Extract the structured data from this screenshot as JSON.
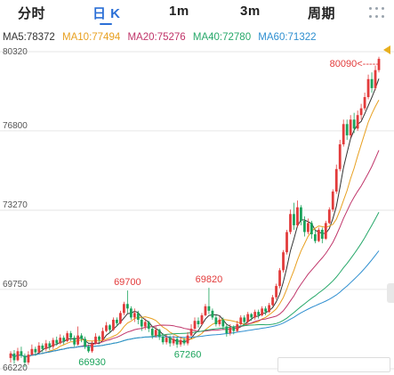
{
  "tabs": [
    {
      "label": "分时",
      "active": false
    },
    {
      "label": "日 K",
      "active": true
    },
    {
      "label": "1m",
      "active": false
    },
    {
      "label": "3m",
      "active": false
    },
    {
      "label": "周期",
      "active": false
    }
  ],
  "ma_legend": [
    {
      "text": "MA5:78372",
      "color": "#333333"
    },
    {
      "text": "MA10:77494",
      "color": "#e8a020"
    },
    {
      "text": "MA20:75276",
      "color": "#c0356a"
    },
    {
      "text": "MA40:72780",
      "color": "#27a86a"
    },
    {
      "text": "MA60:71322",
      "color": "#2f8fd0"
    }
  ],
  "colors": {
    "up": "#e23b3b",
    "down": "#1aa35b",
    "active_tab": "#2b6fd6",
    "grid": "#e6e6e6"
  },
  "chart_data": {
    "type": "candlestick",
    "ylim": [
      66220,
      80320
    ],
    "ytick_labels": [
      "80320",
      "76800",
      "73270",
      "69750",
      "66220"
    ],
    "yticks": [
      80320,
      76800,
      73270,
      69750,
      66220
    ],
    "annotations": [
      {
        "text": "69700",
        "index": 33,
        "value": 69700,
        "pos": "above"
      },
      {
        "text": "69820",
        "index": 56,
        "value": 69820,
        "pos": "above"
      },
      {
        "text": "66930",
        "index": 23,
        "value": 66930,
        "pos": "below"
      },
      {
        "text": "67260",
        "index": 50,
        "value": 67260,
        "pos": "below"
      },
      {
        "text": "80090<-----",
        "index": 105,
        "value": 80090,
        "pos": "left"
      }
    ],
    "candles": [
      [
        66700,
        66900,
        66500,
        67000
      ],
      [
        66900,
        66600,
        66450,
        67050
      ],
      [
        66600,
        67000,
        66550,
        67150
      ],
      [
        67000,
        66800,
        66700,
        67200
      ],
      [
        66800,
        66500,
        66300,
        66900
      ],
      [
        66500,
        66850,
        66400,
        67000
      ],
      [
        66850,
        67100,
        66800,
        67300
      ],
      [
        67100,
        66950,
        66800,
        67200
      ],
      [
        66950,
        67250,
        66900,
        67400
      ],
      [
        67250,
        67100,
        66950,
        67350
      ],
      [
        67100,
        67350,
        67000,
        67500
      ],
      [
        67350,
        67200,
        67050,
        67450
      ],
      [
        67200,
        67500,
        67100,
        67600
      ],
      [
        67500,
        67350,
        67250,
        67650
      ],
      [
        67350,
        67600,
        67300,
        67750
      ],
      [
        67600,
        67450,
        67300,
        67700
      ],
      [
        67450,
        67800,
        67400,
        67900
      ],
      [
        67800,
        67600,
        67450,
        67900
      ],
      [
        67600,
        67300,
        67200,
        67700
      ],
      [
        67300,
        67700,
        67250,
        68100
      ],
      [
        67700,
        67550,
        67400,
        67800
      ],
      [
        67550,
        67200,
        67100,
        67650
      ],
      [
        67200,
        67000,
        66930,
        67300
      ],
      [
        67000,
        67350,
        66930,
        67450
      ],
      [
        67350,
        67650,
        67300,
        67800
      ],
      [
        67650,
        67500,
        67350,
        67700
      ],
      [
        67500,
        67900,
        67450,
        68050
      ],
      [
        67900,
        68150,
        67850,
        68300
      ],
      [
        68150,
        67950,
        67800,
        68200
      ],
      [
        67950,
        68400,
        67900,
        68500
      ],
      [
        68400,
        68250,
        68100,
        68500
      ],
      [
        68250,
        68700,
        68200,
        68800
      ],
      [
        68700,
        69100,
        68600,
        69200
      ],
      [
        69100,
        68900,
        68700,
        69700
      ],
      [
        68900,
        68500,
        68400,
        69000
      ],
      [
        68500,
        68700,
        68300,
        68900
      ],
      [
        68700,
        68400,
        68200,
        68800
      ],
      [
        68400,
        68100,
        67900,
        68500
      ],
      [
        68100,
        68300,
        67950,
        68450
      ],
      [
        68300,
        68000,
        67850,
        68350
      ],
      [
        68000,
        67700,
        67550,
        68100
      ],
      [
        67700,
        67950,
        67600,
        68100
      ],
      [
        67950,
        67650,
        67500,
        68000
      ],
      [
        67650,
        67400,
        67300,
        67800
      ],
      [
        67400,
        67600,
        67300,
        67750
      ],
      [
        67600,
        67350,
        67200,
        67700
      ],
      [
        67350,
        67550,
        67250,
        67700
      ],
      [
        67550,
        67300,
        67150,
        67650
      ],
      [
        67300,
        67500,
        67200,
        67650
      ],
      [
        67500,
        67350,
        67260,
        67600
      ],
      [
        67350,
        67700,
        67260,
        67850
      ],
      [
        67700,
        68000,
        67650,
        68200
      ],
      [
        68000,
        68350,
        67950,
        68500
      ],
      [
        68350,
        68200,
        68050,
        68500
      ],
      [
        68200,
        68600,
        68150,
        68700
      ],
      [
        68600,
        69000,
        68550,
        69100
      ],
      [
        69000,
        68800,
        68650,
        69820
      ],
      [
        68800,
        68500,
        68400,
        68900
      ],
      [
        68500,
        68200,
        68100,
        68600
      ],
      [
        68200,
        68400,
        68100,
        68550
      ],
      [
        68400,
        68100,
        67950,
        68500
      ],
      [
        68100,
        67800,
        67650,
        68200
      ],
      [
        67800,
        68050,
        67700,
        68200
      ],
      [
        68050,
        67900,
        67750,
        68150
      ],
      [
        67900,
        68200,
        67850,
        68350
      ],
      [
        68200,
        68500,
        68150,
        68600
      ],
      [
        68500,
        68300,
        68150,
        68600
      ],
      [
        68300,
        68650,
        68250,
        68750
      ],
      [
        68650,
        68500,
        68350,
        68700
      ],
      [
        68500,
        68750,
        68400,
        68850
      ],
      [
        68750,
        68600,
        68450,
        68850
      ],
      [
        68600,
        68900,
        68550,
        69000
      ],
      [
        68900,
        68750,
        68600,
        69000
      ],
      [
        68750,
        69050,
        68700,
        69150
      ],
      [
        69050,
        69400,
        69000,
        69500
      ],
      [
        69400,
        69900,
        69300,
        70000
      ],
      [
        69900,
        70600,
        69800,
        70700
      ],
      [
        70600,
        71400,
        70500,
        71500
      ],
      [
        71400,
        72300,
        71300,
        72400
      ],
      [
        72300,
        73100,
        72200,
        73300
      ],
      [
        73100,
        72600,
        72400,
        73600
      ],
      [
        72600,
        73400,
        72500,
        73700
      ],
      [
        73400,
        72800,
        72600,
        73500
      ],
      [
        72800,
        72300,
        72100,
        73000
      ],
      [
        72300,
        72700,
        72200,
        72900
      ],
      [
        72700,
        72200,
        72000,
        72800
      ],
      [
        72200,
        71900,
        71800,
        72400
      ],
      [
        71900,
        72400,
        71850,
        72500
      ],
      [
        72400,
        72000,
        71800,
        72500
      ],
      [
        72000,
        72700,
        71950,
        72800
      ],
      [
        72700,
        73300,
        72650,
        73400
      ],
      [
        73300,
        74100,
        73200,
        74200
      ],
      [
        74100,
        75100,
        74000,
        75300
      ],
      [
        75100,
        76200,
        75000,
        76400
      ],
      [
        76200,
        77100,
        76100,
        77300
      ],
      [
        77100,
        76600,
        76400,
        77300
      ],
      [
        76600,
        77300,
        76500,
        77500
      ],
      [
        77300,
        76900,
        76700,
        77600
      ],
      [
        76900,
        77500,
        76800,
        77700
      ],
      [
        77500,
        77800,
        77300,
        78000
      ],
      [
        77800,
        78300,
        77700,
        78500
      ],
      [
        78300,
        79100,
        78200,
        79300
      ],
      [
        79100,
        78700,
        78500,
        79400
      ],
      [
        78700,
        79500,
        78600,
        79700
      ],
      [
        79500,
        80000,
        79400,
        80090
      ]
    ]
  }
}
